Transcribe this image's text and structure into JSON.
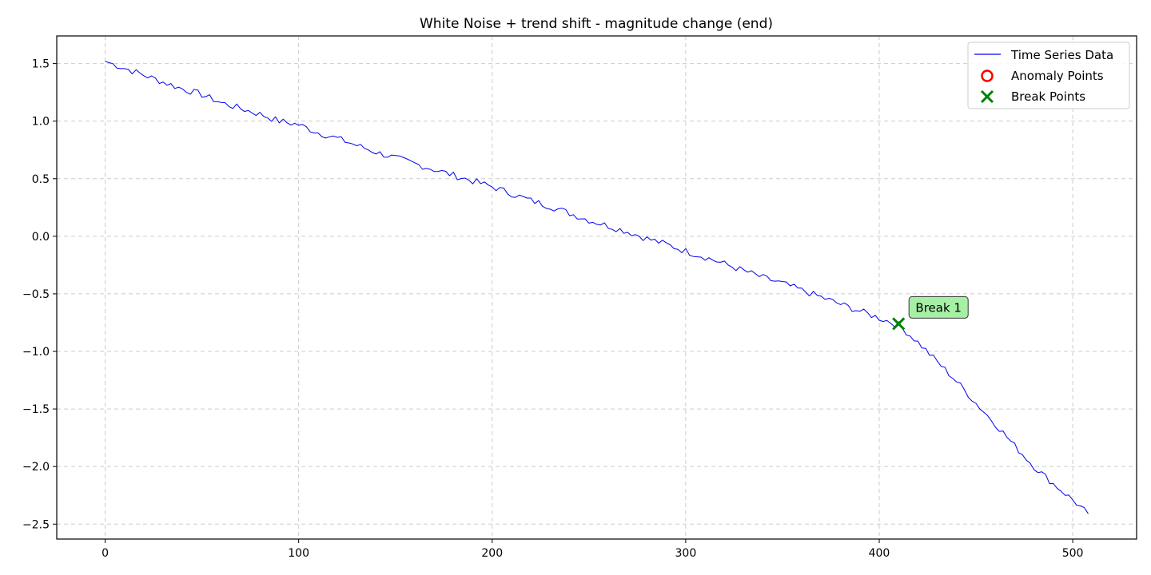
{
  "chart_data": {
    "type": "line",
    "title": "White Noise + trend shift - magnitude change (end)",
    "xlabel": "",
    "ylabel": "",
    "xlim": [
      -25,
      533
    ],
    "ylim": [
      -2.63,
      1.74
    ],
    "xticks": [
      0,
      100,
      200,
      300,
      400,
      500
    ],
    "yticks": [
      1.5,
      1.0,
      0.5,
      0.0,
      -0.5,
      -1.0,
      -1.5,
      -2.0,
      -2.5
    ],
    "ytick_labels": [
      "1.5",
      "1.0",
      "0.5",
      "0.0",
      "−0.5",
      "−1.0",
      "−1.5",
      "−2.0",
      "−2.5"
    ],
    "grid": true,
    "legend_position": "top-right",
    "series": [
      {
        "name": "Time Series Data",
        "color": "#0000ee",
        "x": [
          0,
          10,
          20,
          30,
          40,
          50,
          60,
          70,
          80,
          90,
          100,
          110,
          120,
          130,
          140,
          150,
          160,
          170,
          180,
          190,
          200,
          210,
          220,
          230,
          240,
          250,
          260,
          270,
          280,
          290,
          300,
          310,
          320,
          330,
          340,
          350,
          360,
          370,
          380,
          390,
          400,
          410,
          420,
          430,
          440,
          450,
          460,
          470,
          480,
          490,
          500,
          508
        ],
        "y": [
          1.52,
          1.46,
          1.4,
          1.34,
          1.28,
          1.23,
          1.16,
          1.11,
          1.06,
          1.0,
          0.97,
          0.9,
          0.85,
          0.79,
          0.73,
          0.68,
          0.63,
          0.58,
          0.53,
          0.48,
          0.43,
          0.37,
          0.31,
          0.26,
          0.2,
          0.14,
          0.09,
          0.04,
          -0.02,
          -0.07,
          -0.13,
          -0.18,
          -0.24,
          -0.3,
          -0.36,
          -0.41,
          -0.47,
          -0.53,
          -0.59,
          -0.65,
          -0.71,
          -0.77,
          -0.92,
          -1.09,
          -1.26,
          -1.45,
          -1.63,
          -1.82,
          -2.0,
          -2.15,
          -2.29,
          -2.41
        ]
      }
    ],
    "anomaly_points": {
      "name": "Anomaly Points",
      "color": "#ff0000",
      "x": [],
      "y": []
    },
    "break_points": {
      "name": "Break Points",
      "color": "#008000",
      "x": [
        410
      ],
      "y": [
        -0.76
      ],
      "labels": [
        "Break 1"
      ]
    }
  }
}
